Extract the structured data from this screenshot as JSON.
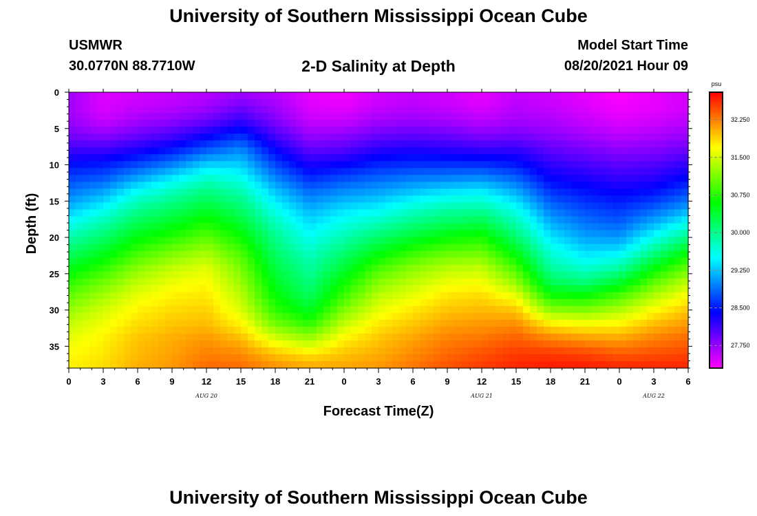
{
  "header": {
    "title": "University of Southern Mississippi Ocean Cube",
    "station": "USMWR",
    "coords": "30.0770N  88.7710W",
    "plot_title": "2-D Salinity at Depth",
    "model_start_label": "Model Start Time",
    "model_start_value": "08/20/2021 Hour 09"
  },
  "footer": {
    "title": "University of Southern Mississippi Ocean Cube"
  },
  "chart_data": {
    "type": "heatmap",
    "variable": "Salinity",
    "units": "psu",
    "xlabel": "Forecast Time(Z)",
    "ylabel": "Depth (ft)",
    "x_ticks": [
      "0",
      "3",
      "6",
      "9",
      "12",
      "15",
      "18",
      "21",
      "0",
      "3",
      "6",
      "9",
      "12",
      "15",
      "18",
      "21",
      "0",
      "3",
      "6"
    ],
    "x_range_hours": [
      0,
      54
    ],
    "date_labels": [
      {
        "label": "AUG  20",
        "at_hour": 12
      },
      {
        "label": "AUG  21",
        "at_hour": 36
      },
      {
        "label": "AUG  22",
        "at_hour": 51
      }
    ],
    "y_ticks": [
      0,
      5,
      10,
      15,
      20,
      25,
      30,
      35
    ],
    "ylim": [
      38,
      0
    ],
    "colorbar": {
      "range": [
        27.3,
        32.8
      ],
      "tick_values": [
        32.25,
        31.5,
        30.75,
        30.0,
        29.25,
        28.5,
        27.75
      ],
      "tick_labels": [
        "32.250",
        "31.500",
        "30.750",
        "30.000",
        "29.250",
        "28.500",
        "27.750"
      ],
      "unit_label": "psu",
      "colors": [
        "#ff00ff",
        "#0000ff",
        "#00ffff",
        "#00ff00",
        "#ffff00",
        "#ff0000"
      ]
    },
    "profiles": {
      "depth_ft": [
        0,
        2,
        4,
        6,
        8,
        10,
        12,
        14,
        16,
        18,
        20,
        22,
        24,
        26,
        28,
        30,
        32,
        34,
        36,
        38
      ],
      "columns": [
        {
          "hour": 0,
          "salinity": [
            27.7,
            27.7,
            27.75,
            27.9,
            28.15,
            28.45,
            28.7,
            28.95,
            29.2,
            29.55,
            29.85,
            30.15,
            30.45,
            30.75,
            31.0,
            31.25,
            31.45,
            31.6,
            31.7,
            31.75
          ]
        },
        {
          "hour": 3,
          "salinity": [
            27.45,
            27.45,
            27.55,
            27.8,
            28.15,
            28.5,
            28.8,
            29.15,
            29.5,
            29.85,
            30.15,
            30.45,
            30.75,
            31.05,
            31.3,
            31.5,
            31.65,
            31.75,
            31.8,
            31.85
          ]
        },
        {
          "hour": 6,
          "salinity": [
            27.5,
            27.55,
            27.7,
            27.95,
            28.3,
            28.7,
            29.15,
            29.6,
            29.95,
            30.25,
            30.55,
            30.85,
            31.15,
            31.4,
            31.6,
            31.75,
            31.85,
            31.95,
            32.0,
            32.05
          ]
        },
        {
          "hour": 9,
          "salinity": [
            27.55,
            27.6,
            27.8,
            28.1,
            28.5,
            28.95,
            29.45,
            29.85,
            30.15,
            30.45,
            30.75,
            31.1,
            31.4,
            31.6,
            31.75,
            31.85,
            31.95,
            32.05,
            32.1,
            32.15
          ]
        },
        {
          "hour": 12,
          "salinity": [
            27.6,
            27.7,
            27.95,
            28.35,
            28.8,
            29.3,
            29.75,
            30.1,
            30.4,
            30.7,
            31.0,
            31.3,
            31.55,
            31.7,
            31.8,
            31.9,
            32.0,
            32.15,
            32.25,
            32.35
          ]
        },
        {
          "hour": 15,
          "salinity": [
            27.7,
            27.9,
            28.2,
            28.6,
            29.0,
            29.3,
            29.6,
            29.9,
            30.15,
            30.4,
            30.65,
            30.9,
            31.1,
            31.25,
            31.4,
            31.55,
            31.75,
            32.0,
            32.2,
            32.35
          ]
        },
        {
          "hour": 18,
          "salinity": [
            27.6,
            27.7,
            27.85,
            28.1,
            28.4,
            28.7,
            29.0,
            29.3,
            29.55,
            29.8,
            30.0,
            30.15,
            30.3,
            30.45,
            30.6,
            30.8,
            31.1,
            31.55,
            31.95,
            32.2
          ]
        },
        {
          "hour": 21,
          "salinity": [
            27.4,
            27.45,
            27.55,
            27.75,
            28.0,
            28.3,
            28.6,
            28.9,
            29.15,
            29.35,
            29.55,
            29.75,
            29.9,
            30.05,
            30.2,
            30.45,
            30.8,
            31.3,
            31.8,
            32.1
          ]
        },
        {
          "hour": 24,
          "salinity": [
            27.35,
            27.4,
            27.55,
            27.8,
            28.05,
            28.4,
            28.75,
            29.05,
            29.35,
            29.6,
            29.85,
            30.1,
            30.35,
            30.6,
            30.85,
            31.15,
            31.45,
            31.75,
            31.95,
            32.1
          ]
        },
        {
          "hour": 27,
          "salinity": [
            27.5,
            27.55,
            27.7,
            27.95,
            28.25,
            28.55,
            28.85,
            29.15,
            29.45,
            29.8,
            30.15,
            30.5,
            30.85,
            31.15,
            31.4,
            31.6,
            31.8,
            31.95,
            32.05,
            32.15
          ]
        },
        {
          "hour": 30,
          "salinity": [
            27.55,
            27.6,
            27.75,
            28.0,
            28.3,
            28.6,
            28.95,
            29.3,
            29.7,
            30.05,
            30.4,
            30.8,
            31.15,
            31.4,
            31.6,
            31.8,
            31.95,
            32.1,
            32.2,
            32.3
          ]
        },
        {
          "hour": 33,
          "salinity": [
            27.5,
            27.55,
            27.7,
            27.95,
            28.25,
            28.6,
            29.0,
            29.45,
            29.85,
            30.2,
            30.6,
            31.0,
            31.35,
            31.6,
            31.8,
            31.95,
            32.1,
            32.25,
            32.35,
            32.45
          ]
        },
        {
          "hour": 36,
          "salinity": [
            27.4,
            27.45,
            27.6,
            27.85,
            28.2,
            28.6,
            29.05,
            29.5,
            29.9,
            30.3,
            30.7,
            31.05,
            31.4,
            31.65,
            31.85,
            32.0,
            32.15,
            32.3,
            32.45,
            32.55
          ]
        },
        {
          "hour": 39,
          "salinity": [
            27.55,
            27.6,
            27.7,
            27.9,
            28.2,
            28.5,
            28.85,
            29.2,
            29.55,
            29.85,
            30.15,
            30.5,
            30.85,
            31.2,
            31.6,
            31.95,
            32.2,
            32.4,
            32.55,
            32.65
          ]
        },
        {
          "hour": 42,
          "salinity": [
            27.5,
            27.55,
            27.65,
            27.8,
            28.0,
            28.2,
            28.4,
            28.65,
            28.9,
            29.15,
            29.4,
            29.65,
            29.9,
            30.2,
            30.65,
            31.2,
            31.8,
            32.25,
            32.55,
            32.7
          ]
        },
        {
          "hour": 45,
          "salinity": [
            27.4,
            27.45,
            27.55,
            27.7,
            27.9,
            28.1,
            28.3,
            28.5,
            28.7,
            28.9,
            29.1,
            29.35,
            29.65,
            30.05,
            30.6,
            31.15,
            31.7,
            32.15,
            32.5,
            32.7
          ]
        },
        {
          "hour": 48,
          "salinity": [
            27.3,
            27.35,
            27.45,
            27.6,
            27.8,
            28.0,
            28.2,
            28.4,
            28.6,
            28.8,
            29.05,
            29.4,
            29.85,
            30.35,
            30.9,
            31.35,
            31.75,
            32.1,
            32.4,
            32.65
          ]
        },
        {
          "hour": 51,
          "salinity": [
            27.4,
            27.4,
            27.5,
            27.65,
            27.85,
            28.05,
            28.25,
            28.5,
            28.8,
            29.15,
            29.55,
            30.0,
            30.5,
            30.95,
            31.35,
            31.7,
            32.0,
            32.25,
            32.45,
            32.65
          ]
        },
        {
          "hour": 54,
          "salinity": [
            27.5,
            27.5,
            27.6,
            27.75,
            27.95,
            28.2,
            28.45,
            28.75,
            29.1,
            29.55,
            30.05,
            30.55,
            31.0,
            31.4,
            31.7,
            31.95,
            32.15,
            32.35,
            32.5,
            32.65
          ]
        }
      ]
    }
  }
}
